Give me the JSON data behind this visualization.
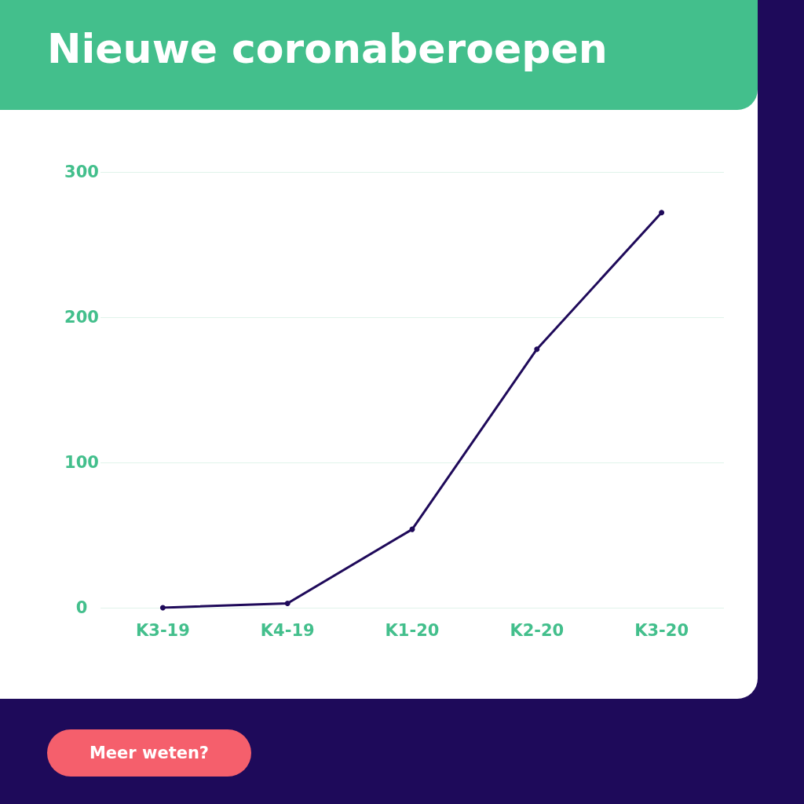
{
  "chart_data": {
    "type": "line",
    "title": "Nieuwe coronaberoepen",
    "categories": [
      "K3-19",
      "K4-19",
      "K1-20",
      "K2-20",
      "K3-20"
    ],
    "series": [
      {
        "color": "#1f0a5a",
        "values": [
          0,
          3,
          54,
          178,
          272
        ]
      }
    ],
    "ylim": [
      0,
      300
    ],
    "yticks": [
      0,
      100,
      200,
      300
    ],
    "grid": "y",
    "marker": "circle",
    "line_style": "solid",
    "annotations": [
      "Meer weten?"
    ]
  }
}
